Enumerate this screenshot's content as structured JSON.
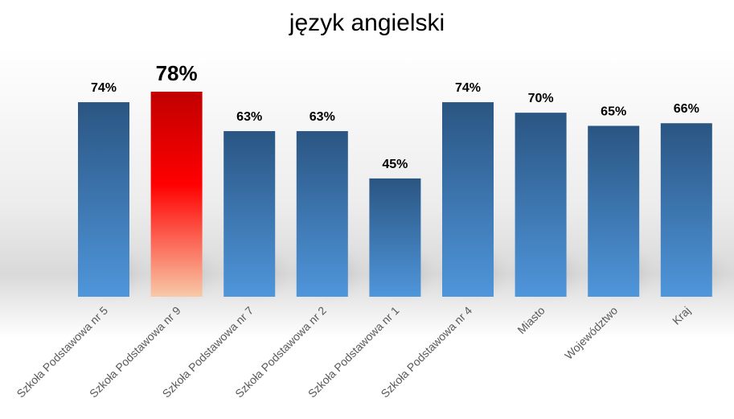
{
  "chart_data": {
    "type": "bar",
    "title": "język angielski",
    "categories": [
      "Szkoła Podstawowa nr 5",
      "Szkoła Podstawowa nr 9",
      "Szkoła Podstawowa nr 7",
      "Szkoła Podstawowa nr 2",
      "Szkoła Podstawowa nr 1",
      "Szkoła Podstawowa nr 4",
      "Miasto",
      "Województwo",
      "Kraj"
    ],
    "values": [
      74,
      78,
      63,
      63,
      45,
      74,
      70,
      65,
      66
    ],
    "value_labels": [
      "74%",
      "78%",
      "63%",
      "63%",
      "45%",
      "74%",
      "70%",
      "65%",
      "66%"
    ],
    "highlight_index": 1,
    "ylim": [
      0,
      78
    ],
    "grid": false,
    "legend": "none",
    "colors": {
      "bar_top": "#2a5582",
      "bar_bottom": "#4f96db",
      "highlight_top": "#c00000",
      "highlight_mid": "#ff0000",
      "highlight_bottom": "#f8c9a8",
      "label": "#000000",
      "axis_label": "#595959"
    }
  }
}
